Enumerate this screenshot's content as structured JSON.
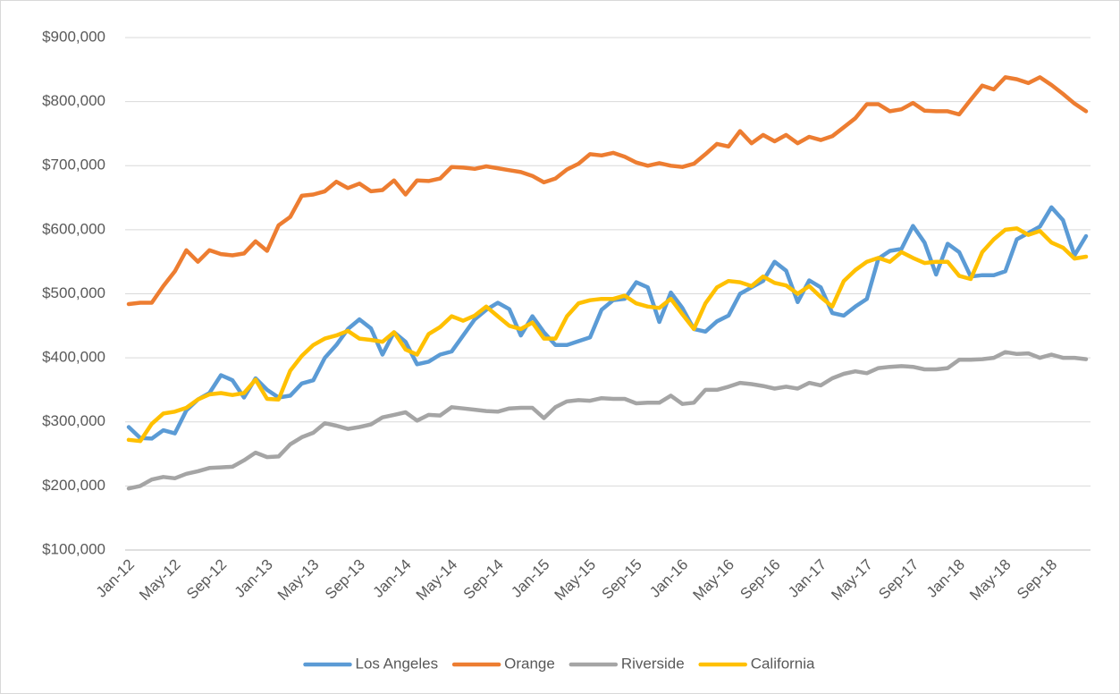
{
  "chart_data": {
    "type": "line",
    "categories": [
      "Jan-12",
      null,
      null,
      null,
      "May-12",
      null,
      null,
      null,
      "Sep-12",
      null,
      null,
      null,
      "Jan-13",
      null,
      null,
      null,
      "May-13",
      null,
      null,
      null,
      "Sep-13",
      null,
      null,
      null,
      "Jan-14",
      null,
      null,
      null,
      "May-14",
      null,
      null,
      null,
      "Sep-14",
      null,
      null,
      null,
      "Jan-15",
      null,
      null,
      null,
      "May-15",
      null,
      null,
      null,
      "Sep-15",
      null,
      null,
      null,
      "Jan-16",
      null,
      null,
      null,
      "May-16",
      null,
      null,
      null,
      "Sep-16",
      null,
      null,
      null,
      "Jan-17",
      null,
      null,
      null,
      "May-17",
      null,
      null,
      null,
      "Sep-17",
      null,
      null,
      null,
      "Jan-18",
      null,
      null,
      null,
      "May-18",
      null,
      null,
      null,
      "Sep-18",
      null,
      null,
      null
    ],
    "series": [
      {
        "name": "Los Angeles",
        "color": "#5b9bd5",
        "values": [
          292000,
          275000,
          274000,
          287000,
          282000,
          318000,
          335000,
          345000,
          373000,
          365000,
          338000,
          368000,
          350000,
          338000,
          341000,
          360000,
          365000,
          400000,
          420000,
          445000,
          460000,
          446000,
          405000,
          440000,
          425000,
          390000,
          394000,
          405000,
          410000,
          435000,
          460000,
          475000,
          486000,
          476000,
          435000,
          465000,
          440000,
          420000,
          420000,
          426000,
          432000,
          475000,
          490000,
          492000,
          518000,
          510000,
          456000,
          502000,
          478000,
          445000,
          441000,
          457000,
          466000,
          500000,
          510000,
          520000,
          550000,
          536000,
          487000,
          521000,
          510000,
          470000,
          466000,
          480000,
          492000,
          555000,
          567000,
          570000,
          606000,
          580000,
          530000,
          578000,
          565000,
          527000,
          529000,
          529000,
          535000,
          585000,
          595000,
          605000,
          635000,
          615000,
          560000,
          590000
        ]
      },
      {
        "name": "Orange",
        "color": "#ed7d31",
        "values": [
          484000,
          486000,
          486000,
          512000,
          535000,
          568000,
          550000,
          568000,
          562000,
          560000,
          563000,
          582000,
          567000,
          607000,
          620000,
          653000,
          655000,
          660000,
          675000,
          665000,
          672000,
          660000,
          662000,
          677000,
          655000,
          677000,
          676000,
          680000,
          698000,
          697000,
          695000,
          699000,
          696000,
          693000,
          690000,
          684000,
          674000,
          680000,
          694000,
          703000,
          718000,
          716000,
          720000,
          714000,
          705000,
          700000,
          704000,
          700000,
          698000,
          703000,
          718000,
          734000,
          730000,
          754000,
          735000,
          748000,
          738000,
          748000,
          735000,
          745000,
          740000,
          746000,
          760000,
          774000,
          796000,
          796000,
          785000,
          788000,
          798000,
          786000,
          785000,
          785000,
          780000,
          803000,
          825000,
          819000,
          838000,
          835000,
          829000,
          838000,
          826000,
          812000,
          797000,
          785000
        ]
      },
      {
        "name": "Riverside",
        "color": "#a5a5a5",
        "values": [
          196000,
          200000,
          210000,
          214000,
          212000,
          219000,
          223000,
          228000,
          229000,
          230000,
          240000,
          252000,
          245000,
          246000,
          265000,
          276000,
          283000,
          298000,
          294000,
          289000,
          292000,
          296000,
          307000,
          311000,
          315000,
          302000,
          311000,
          310000,
          323000,
          321000,
          319000,
          317000,
          316000,
          321000,
          322000,
          322000,
          306000,
          323000,
          332000,
          334000,
          333000,
          337000,
          336000,
          336000,
          329000,
          330000,
          330000,
          341000,
          328000,
          330000,
          350000,
          350000,
          355000,
          361000,
          359000,
          356000,
          352000,
          355000,
          352000,
          361000,
          357000,
          368000,
          375000,
          379000,
          376000,
          384000,
          386000,
          387000,
          386000,
          382000,
          382000,
          384000,
          397000,
          397000,
          398000,
          400000,
          409000,
          406000,
          407000,
          400000,
          405000,
          400000,
          400000,
          398000
        ]
      },
      {
        "name": "California",
        "color": "#ffc000",
        "values": [
          272000,
          270000,
          297000,
          313000,
          316000,
          322000,
          335000,
          343000,
          345000,
          342000,
          345000,
          366000,
          336000,
          335000,
          380000,
          403000,
          420000,
          430000,
          435000,
          442000,
          430000,
          428000,
          425000,
          440000,
          413000,
          405000,
          437000,
          448000,
          465000,
          458000,
          466000,
          480000,
          465000,
          450000,
          445000,
          455000,
          430000,
          430000,
          465000,
          485000,
          490000,
          492000,
          492000,
          497000,
          485000,
          480000,
          478000,
          492000,
          468000,
          445000,
          485000,
          510000,
          520000,
          518000,
          512000,
          527000,
          517000,
          513000,
          500000,
          512000,
          495000,
          480000,
          520000,
          537000,
          550000,
          556000,
          550000,
          565000,
          556000,
          548000,
          550000,
          550000,
          528000,
          523000,
          565000,
          585000,
          600000,
          602000,
          592000,
          598000,
          580000,
          572000,
          555000,
          558000
        ]
      }
    ],
    "ylim": [
      100000,
      900000
    ],
    "yticks": [
      {
        "value": 100000,
        "label": "$100,000"
      },
      {
        "value": 200000,
        "label": "$200,000"
      },
      {
        "value": 300000,
        "label": "$300,000"
      },
      {
        "value": 400000,
        "label": "$400,000"
      },
      {
        "value": 500000,
        "label": "$500,000"
      },
      {
        "value": 600000,
        "label": "$600,000"
      },
      {
        "value": 700000,
        "label": "$700,000"
      },
      {
        "value": 800000,
        "label": "$800,000"
      },
      {
        "value": 900000,
        "label": "$900,000"
      }
    ],
    "grid": true,
    "legend": "bottom"
  }
}
